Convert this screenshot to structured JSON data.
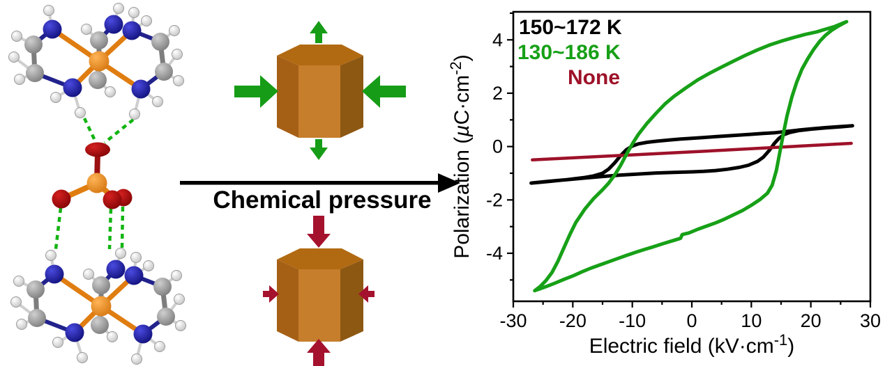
{
  "pressure_arrow": {
    "label": "Chemical pressure"
  },
  "colors": {
    "curve_black": "#000000",
    "curve_green": "#17a017",
    "curve_darkred": "#9d1229",
    "hbond_green": "#12b412",
    "arrow_green": "#169c16",
    "arrow_darkred": "#a5122e",
    "prism_top_face": "#b26a12",
    "prism_front_face": "#c67e2c",
    "prism_left_face": "#a66016",
    "prism_right_face": "#8d5812",
    "atom_oxygen": "#a50b0b",
    "atom_nitrogen": "#10109e",
    "atom_phosphorus": "#f08514",
    "atom_carbon": "#8f8f8f",
    "atom_hydrogen": "#eeeeee"
  },
  "chart_data": {
    "type": "line",
    "title": "",
    "xlabel": "Electric field (kV·cm⁻¹)",
    "xlabel_parts": {
      "main": "Electric field (kV·cm",
      "sup": "-1",
      "close": ")"
    },
    "ylabel": "Polarization (µC·cm⁻²)",
    "ylabel_parts": {
      "main": "Polarization (",
      "mu": "µ",
      "mid": "C·cm",
      "sup": "-2",
      "close": ")"
    },
    "xlim": [
      -30,
      30
    ],
    "ylim": [
      -5.8,
      5.05
    ],
    "xticks": [
      -30,
      -20,
      -10,
      0,
      10,
      20,
      30
    ],
    "yticks": [
      -4,
      -2,
      0,
      2,
      4
    ],
    "x_minor_ticks": [
      -25,
      -15,
      -5,
      5,
      15,
      25
    ],
    "y_minor_ticks": [
      -5,
      -3,
      -1,
      1,
      3,
      5
    ],
    "grid": false,
    "legend_position": "top-left-inside",
    "legend": [
      {
        "label": "150~172 K",
        "color": "#000000"
      },
      {
        "label": "130~186 K",
        "color": "#17a017"
      },
      {
        "label": "None",
        "color": "#9d1229"
      }
    ],
    "series": [
      {
        "name": "150~172 K",
        "color": "#000000",
        "width": 5,
        "points": [
          [
            -27,
            -1.37
          ],
          [
            -24,
            -1.3
          ],
          [
            -21,
            -1.24
          ],
          [
            -18,
            -1.18
          ],
          [
            -15,
            -1.12
          ],
          [
            -12,
            -1.07
          ],
          [
            -9,
            -1.03
          ],
          [
            -6,
            -0.99
          ],
          [
            -3,
            -0.97
          ],
          [
            0,
            -0.95
          ],
          [
            2,
            -0.93
          ],
          [
            4,
            -0.9
          ],
          [
            6,
            -0.85
          ],
          [
            8,
            -0.78
          ],
          [
            9.5,
            -0.7
          ],
          [
            11,
            -0.56
          ],
          [
            12,
            -0.4
          ],
          [
            13,
            -0.15
          ],
          [
            13.8,
            0.1
          ],
          [
            14.6,
            0.3
          ],
          [
            15.5,
            0.45
          ],
          [
            16.5,
            0.53
          ],
          [
            18,
            0.6
          ],
          [
            20,
            0.65
          ],
          [
            22.5,
            0.7
          ],
          [
            25,
            0.74
          ],
          [
            27,
            0.78
          ],
          [
            25,
            0.75
          ],
          [
            22.5,
            0.71
          ],
          [
            20,
            0.66
          ],
          [
            18,
            0.62
          ],
          [
            16,
            0.57
          ],
          [
            14,
            0.52
          ],
          [
            12,
            0.49
          ],
          [
            10,
            0.46
          ],
          [
            8,
            0.43
          ],
          [
            6,
            0.4
          ],
          [
            4,
            0.37
          ],
          [
            2,
            0.34
          ],
          [
            0,
            0.31
          ],
          [
            -2,
            0.28
          ],
          [
            -4,
            0.24
          ],
          [
            -6,
            0.2
          ],
          [
            -7.5,
            0.16
          ],
          [
            -9,
            0.1
          ],
          [
            -10,
            0.02
          ],
          [
            -11,
            -0.12
          ],
          [
            -12,
            -0.35
          ],
          [
            -13,
            -0.62
          ],
          [
            -14,
            -0.85
          ],
          [
            -15,
            -1.0
          ],
          [
            -16.5,
            -1.1
          ],
          [
            -18,
            -1.16
          ],
          [
            -21,
            -1.24
          ],
          [
            -24,
            -1.31
          ],
          [
            -27,
            -1.37
          ]
        ]
      },
      {
        "name": "None",
        "color": "#9d1229",
        "width": 4.5,
        "points": [
          [
            -26.8,
            -0.5
          ],
          [
            0,
            -0.2
          ],
          [
            26.8,
            0.12
          ]
        ]
      },
      {
        "name": "130~186 K",
        "color": "#17a017",
        "width": 5,
        "points": [
          [
            -26.4,
            -5.4
          ],
          [
            -25.5,
            -5.33
          ],
          [
            -24.5,
            -5.25
          ],
          [
            -23,
            -5.12
          ],
          [
            -21.5,
            -4.98
          ],
          [
            -20,
            -4.85
          ],
          [
            -18.5,
            -4.7
          ],
          [
            -17,
            -4.56
          ],
          [
            -15.5,
            -4.44
          ],
          [
            -14,
            -4.32
          ],
          [
            -12.5,
            -4.2
          ],
          [
            -11,
            -4.08
          ],
          [
            -9.5,
            -3.97
          ],
          [
            -8,
            -3.86
          ],
          [
            -6.5,
            -3.76
          ],
          [
            -5,
            -3.65
          ],
          [
            -3.5,
            -3.55
          ],
          [
            -2.2,
            -3.46
          ],
          [
            -1.9,
            -3.44
          ],
          [
            -1.6,
            -3.3
          ],
          [
            -0.5,
            -3.24
          ],
          [
            1,
            -3.1
          ],
          [
            2.5,
            -2.98
          ],
          [
            4,
            -2.86
          ],
          [
            5.5,
            -2.72
          ],
          [
            7,
            -2.56
          ],
          [
            8.5,
            -2.4
          ],
          [
            10,
            -2.2
          ],
          [
            11.5,
            -1.98
          ],
          [
            12.7,
            -1.75
          ],
          [
            13.5,
            -1.45
          ],
          [
            14.2,
            -0.9
          ],
          [
            14.8,
            -0.2
          ],
          [
            15.4,
            0.5
          ],
          [
            16,
            1.15
          ],
          [
            16.8,
            1.85
          ],
          [
            17.6,
            2.4
          ],
          [
            18.5,
            2.9
          ],
          [
            19.5,
            3.3
          ],
          [
            20.5,
            3.65
          ],
          [
            21.5,
            3.95
          ],
          [
            22.5,
            4.18
          ],
          [
            23.5,
            4.36
          ],
          [
            24.5,
            4.5
          ],
          [
            25.3,
            4.6
          ],
          [
            26,
            4.68
          ],
          [
            25.3,
            4.62
          ],
          [
            24,
            4.5
          ],
          [
            22.5,
            4.4
          ],
          [
            21,
            4.3
          ],
          [
            19,
            4.2
          ],
          [
            17,
            4.08
          ],
          [
            15,
            3.95
          ],
          [
            13,
            3.8
          ],
          [
            11,
            3.62
          ],
          [
            9,
            3.42
          ],
          [
            7,
            3.2
          ],
          [
            5,
            2.98
          ],
          [
            3,
            2.75
          ],
          [
            1,
            2.5
          ],
          [
            -1,
            2.2
          ],
          [
            -3,
            1.88
          ],
          [
            -4.5,
            1.6
          ],
          [
            -6,
            1.25
          ],
          [
            -7.5,
            0.88
          ],
          [
            -9,
            0.45
          ],
          [
            -10,
            0.1
          ],
          [
            -11,
            -0.3
          ],
          [
            -12,
            -0.72
          ],
          [
            -13,
            -1.08
          ],
          [
            -14,
            -1.38
          ],
          [
            -15,
            -1.62
          ],
          [
            -16.5,
            -1.95
          ],
          [
            -18,
            -2.35
          ],
          [
            -19.5,
            -2.85
          ],
          [
            -20.5,
            -3.3
          ],
          [
            -21.5,
            -3.8
          ],
          [
            -22.5,
            -4.3
          ],
          [
            -23.5,
            -4.72
          ],
          [
            -24.5,
            -5.02
          ],
          [
            -25.5,
            -5.25
          ],
          [
            -26.4,
            -5.4
          ]
        ]
      }
    ]
  }
}
